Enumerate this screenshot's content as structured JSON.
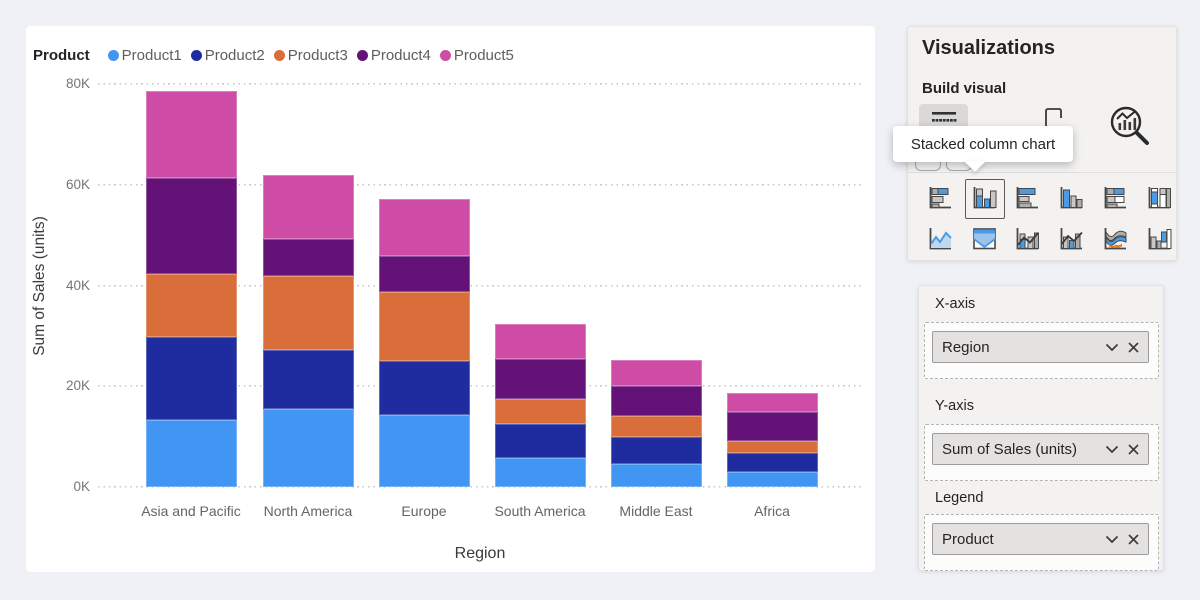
{
  "viz_panel": {
    "title": "Visualizations",
    "subtitle": "Build visual",
    "tooltip": "Stacked column chart",
    "top_icons": [
      {
        "name": "build-visual-icon",
        "selected": true
      },
      {
        "name": "format-visual-icon",
        "selected": false
      },
      {
        "name": "analytics-icon",
        "selected": false
      }
    ],
    "gallery": [
      "stacked-bar-chart",
      "stacked-column-chart",
      "clustered-bar-chart",
      "clustered-column-chart",
      "100-stacked-bar-chart",
      "100-stacked-column-chart",
      "line-chart",
      "area-chart",
      "line-and-stacked-column-chart",
      "line-and-clustered-column-chart",
      "ribbon-chart",
      "waterfall-chart"
    ],
    "selected_gallery_item": "stacked-column-chart"
  },
  "field_wells": {
    "x_axis": {
      "label": "X-axis",
      "value": "Region"
    },
    "y_axis": {
      "label": "Y-axis",
      "value": "Sum of Sales (units)"
    },
    "legend": {
      "label": "Legend",
      "value": "Product"
    }
  },
  "chart_data": {
    "type": "bar",
    "stacked": true,
    "legend_title": "Product",
    "legend_position": "top",
    "xlabel": "Region",
    "ylabel": "Sum of Sales (units)",
    "ylim": [
      0,
      80
    ],
    "yticks": [
      0,
      20,
      40,
      60,
      80
    ],
    "ytick_suffix": "K",
    "grid": "dotted-horizontal",
    "values_unit": "thousands of units",
    "categories": [
      "Asia and Pacific",
      "North America",
      "Europe",
      "South America",
      "Middle East",
      "Africa"
    ],
    "series": [
      {
        "name": "Product1",
        "color": "#4296F3",
        "values": [
          13.3,
          15.5,
          14.3,
          5.7,
          4.5,
          3.0
        ]
      },
      {
        "name": "Product2",
        "color": "#1E2C9F",
        "values": [
          16.4,
          11.6,
          10.8,
          6.8,
          5.4,
          3.8
        ]
      },
      {
        "name": "Product3",
        "color": "#D96E3B",
        "values": [
          12.6,
          14.7,
          13.7,
          5.0,
          4.2,
          2.4
        ]
      },
      {
        "name": "Product4",
        "color": "#641277",
        "values": [
          19.0,
          7.4,
          7.0,
          8.0,
          6.0,
          5.6
        ]
      },
      {
        "name": "Product5",
        "color": "#CE4BA6",
        "values": [
          17.4,
          12.8,
          11.4,
          6.8,
          5.2,
          3.9
        ]
      }
    ],
    "totals": [
      78.7,
      62.0,
      57.2,
      32.3,
      25.3,
      18.7
    ]
  }
}
